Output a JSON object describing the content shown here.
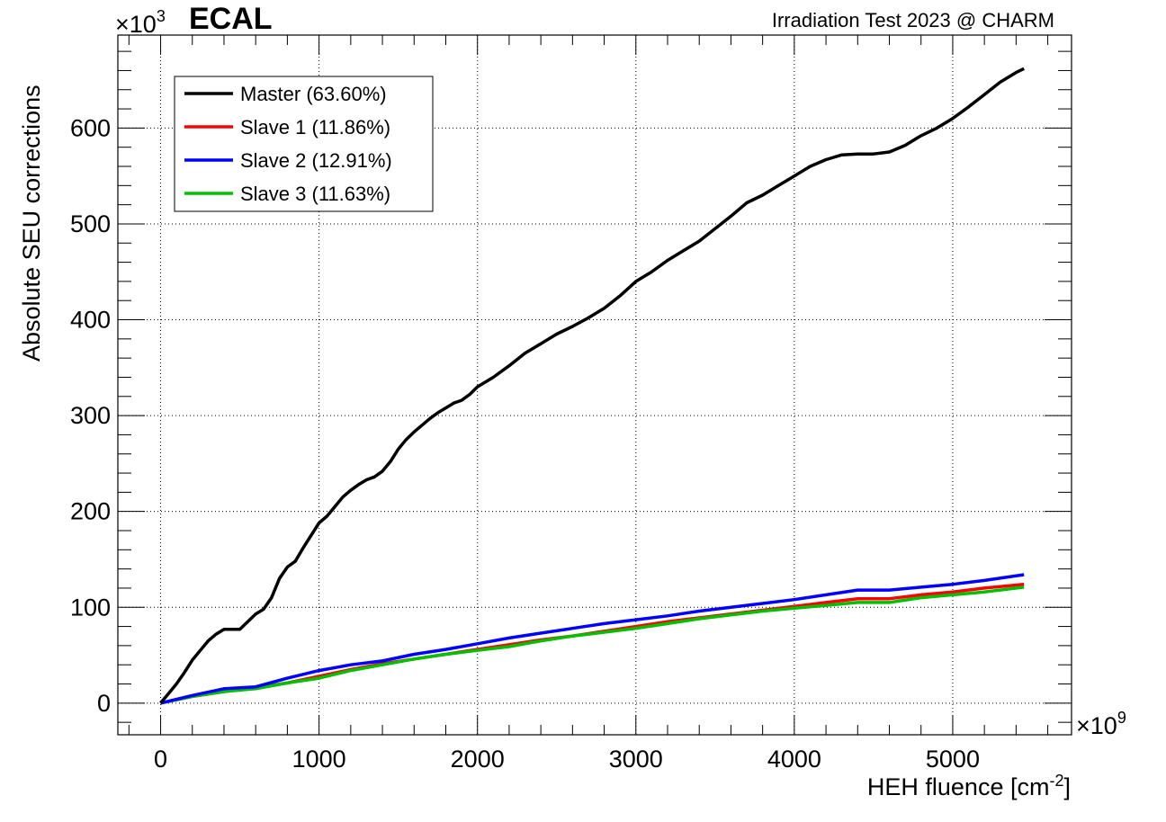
{
  "chart_data": {
    "type": "line",
    "title": "ECAL",
    "subtitle": "Irradiation Test 2023 @ CHARM",
    "xlabel": "HEH fluence [cm",
    "xlabel_sup": "-2",
    "xlabel_close": "]",
    "ylabel": "Absolute SEU corrections",
    "x_multiplier_base": "×10",
    "x_multiplier_exp": "9",
    "y_multiplier_base": "×10",
    "y_multiplier_exp": "3",
    "xlim": [
      -270,
      5750
    ],
    "ylim": [
      -33,
      697
    ],
    "xticks": [
      0,
      1000,
      2000,
      3000,
      4000,
      5000
    ],
    "yticks": [
      0,
      100,
      200,
      300,
      400,
      500,
      600
    ],
    "grid": true,
    "legend_position": "top-left",
    "series": [
      {
        "name": "Master (63.60%)",
        "color": "#000000",
        "x": [
          0,
          50,
          100,
          150,
          200,
          250,
          300,
          350,
          400,
          450,
          500,
          550,
          600,
          650,
          700,
          750,
          800,
          850,
          900,
          950,
          1000,
          1050,
          1100,
          1150,
          1200,
          1250,
          1300,
          1350,
          1400,
          1450,
          1500,
          1550,
          1600,
          1650,
          1700,
          1750,
          1800,
          1850,
          1900,
          1950,
          2000,
          2100,
          2200,
          2300,
          2400,
          2500,
          2600,
          2700,
          2800,
          2900,
          3000,
          3100,
          3200,
          3300,
          3400,
          3500,
          3600,
          3700,
          3800,
          3900,
          4000,
          4100,
          4200,
          4300,
          4400,
          4500,
          4600,
          4700,
          4800,
          4900,
          5000,
          5100,
          5200,
          5300,
          5400,
          5450
        ],
        "y": [
          0,
          10,
          20,
          32,
          45,
          55,
          65,
          72,
          77,
          77,
          77,
          85,
          93,
          98,
          110,
          130,
          142,
          148,
          162,
          175,
          188,
          195,
          205,
          215,
          222,
          228,
          233,
          236,
          242,
          252,
          265,
          275,
          283,
          290,
          297,
          303,
          308,
          313,
          316,
          322,
          330,
          340,
          352,
          365,
          375,
          385,
          393,
          402,
          412,
          425,
          440,
          450,
          462,
          472,
          482,
          495,
          508,
          522,
          530,
          540,
          550,
          560,
          567,
          572,
          573,
          573,
          575,
          582,
          592,
          600,
          610,
          622,
          635,
          648,
          658,
          662
        ]
      },
      {
        "name": "Slave 1 (11.86%)",
        "color": "#ff0000",
        "x": [
          0,
          200,
          400,
          600,
          800,
          1000,
          1200,
          1400,
          1600,
          1800,
          2000,
          2200,
          2400,
          2600,
          2800,
          3000,
          3200,
          3400,
          3600,
          3800,
          4000,
          4200,
          4400,
          4600,
          4800,
          5000,
          5200,
          5450
        ],
        "y": [
          0,
          7,
          12,
          16,
          21,
          28,
          35,
          41,
          46,
          51,
          56,
          61,
          66,
          70,
          75,
          80,
          85,
          89,
          93,
          97,
          101,
          105,
          109,
          109,
          113,
          116,
          120,
          124
        ]
      },
      {
        "name": "Slave 2 (12.91%)",
        "color": "#0000ff",
        "x": [
          0,
          200,
          400,
          600,
          800,
          1000,
          1200,
          1400,
          1600,
          1800,
          2000,
          2200,
          2400,
          2600,
          2800,
          3000,
          3200,
          3400,
          3600,
          3800,
          4000,
          4200,
          4400,
          4600,
          4800,
          5000,
          5200,
          5450
        ],
        "y": [
          0,
          8,
          15,
          17,
          26,
          34,
          40,
          44,
          51,
          56,
          62,
          68,
          73,
          78,
          83,
          87,
          91,
          96,
          100,
          104,
          108,
          113,
          118,
          118,
          121,
          124,
          128,
          134
        ]
      },
      {
        "name": "Slave 3 (11.63%)",
        "color": "#00c000",
        "x": [
          0,
          200,
          400,
          600,
          800,
          1000,
          1200,
          1400,
          1600,
          1800,
          2000,
          2200,
          2400,
          2600,
          2800,
          3000,
          3200,
          3400,
          3600,
          3800,
          4000,
          4200,
          4400,
          4600,
          4800,
          5000,
          5200,
          5450
        ],
        "y": [
          0,
          7,
          12,
          15,
          21,
          26,
          34,
          40,
          46,
          51,
          55,
          59,
          65,
          70,
          74,
          78,
          83,
          88,
          92,
          96,
          99,
          102,
          105,
          105,
          110,
          113,
          116,
          121
        ]
      }
    ]
  }
}
